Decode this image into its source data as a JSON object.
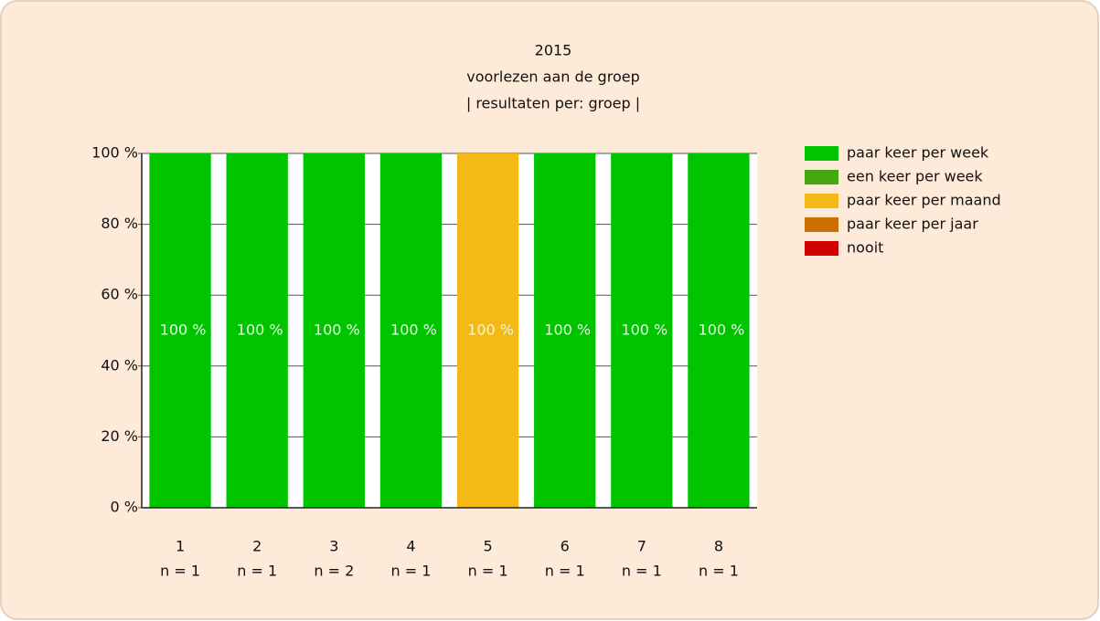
{
  "chart_data": {
    "type": "stacked_bar",
    "title": "2015",
    "subtitles": [
      "voorlezen aan de groep",
      "| resultaten per: groep |"
    ],
    "categories": [
      "1",
      "2",
      "3",
      "4",
      "5",
      "6",
      "7",
      "8"
    ],
    "category_notes": [
      "n = 1",
      "n = 1",
      "n = 2",
      "n = 1",
      "n = 1",
      "n = 1",
      "n = 1",
      "n = 1"
    ],
    "series": [
      {
        "name": "paar keer per week",
        "color": "#00c400",
        "values": [
          100,
          100,
          100,
          100,
          0,
          100,
          100,
          100
        ],
        "value_labels": [
          "100 %",
          "100 %",
          "100 %",
          "100 %",
          null,
          "100 %",
          "100 %",
          "100 %"
        ]
      },
      {
        "name": "een keer per week",
        "color": "#43a812",
        "values": [
          0,
          0,
          0,
          0,
          0,
          0,
          0,
          0
        ]
      },
      {
        "name": "paar keer per maand",
        "color": "#f5b915",
        "values": [
          0,
          0,
          0,
          0,
          100,
          0,
          0,
          0
        ],
        "value_labels": [
          null,
          null,
          null,
          null,
          "100 %",
          null,
          null,
          null
        ]
      },
      {
        "name": "paar keer per jaar",
        "color": "#cc6e00",
        "values": [
          0,
          0,
          0,
          0,
          0,
          0,
          0,
          0
        ]
      },
      {
        "name": "nooit",
        "color": "#d00000",
        "values": [
          0,
          0,
          0,
          0,
          0,
          0,
          0,
          0
        ]
      }
    ],
    "ylim": [
      0,
      100
    ],
    "yticks": [
      {
        "value": 0,
        "label": "0 %"
      },
      {
        "value": 20,
        "label": "20 %"
      },
      {
        "value": 40,
        "label": "40 %"
      },
      {
        "value": 60,
        "label": "60 %"
      },
      {
        "value": 80,
        "label": "80 %"
      },
      {
        "value": 100,
        "label": "100 %"
      }
    ],
    "grid": true,
    "legend": "right"
  }
}
